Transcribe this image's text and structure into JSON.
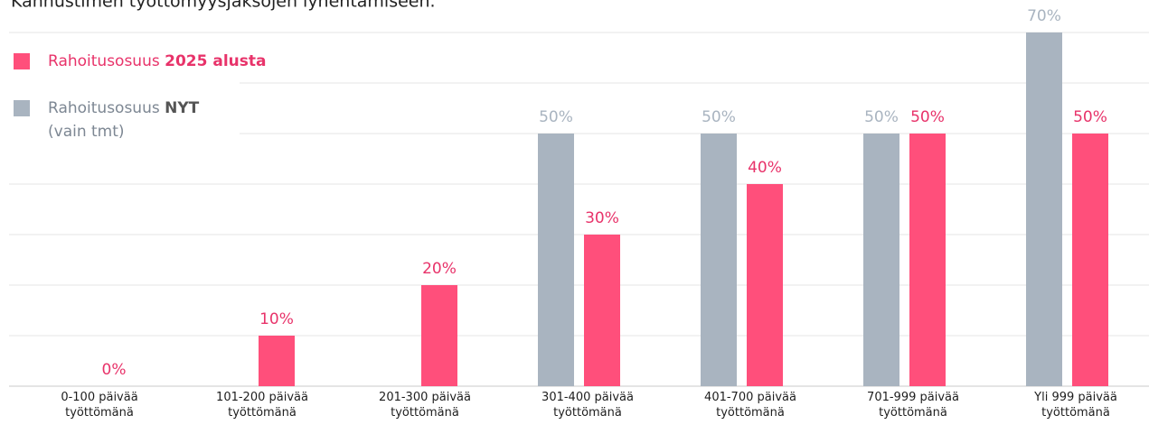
{
  "chart_data": {
    "type": "bar",
    "subtitle": "Kannustimen työttömyysjaksojen lyhentämiseen.",
    "categories": [
      "0-100 päivää\ntyöttömänä",
      "101-200 päivää\ntyöttömänä",
      "201-300 päivää\ntyöttömänä",
      "301-400 päivää\ntyöttömänä",
      "401-700 päivää\ntyöttömänä",
      "701-999 päivää\ntyöttömänä",
      "Yli 999 päivää\ntyöttömänä"
    ],
    "series": [
      {
        "name": "Rahoitusosuus NYT",
        "note": "(vain tmt)",
        "color": "#a9b4c0",
        "label_color": "#a9b4c0",
        "values": [
          null,
          null,
          null,
          50,
          50,
          50,
          70
        ],
        "value_labels": [
          null,
          null,
          null,
          "50%",
          "50%",
          "50%",
          "70%"
        ]
      },
      {
        "name": "Rahoitusosuus 2025 alusta",
        "color": "#ff4f7b",
        "label_color": "#e8336a",
        "values": [
          0,
          10,
          20,
          30,
          40,
          50,
          50
        ],
        "value_labels": [
          "0%",
          "10%",
          "20%",
          "30%",
          "40%",
          "50%",
          "50%"
        ]
      }
    ],
    "ylim": [
      0,
      70
    ],
    "yticks": [
      0,
      10,
      20,
      30,
      40,
      50,
      60,
      70
    ],
    "grid": true
  }
}
